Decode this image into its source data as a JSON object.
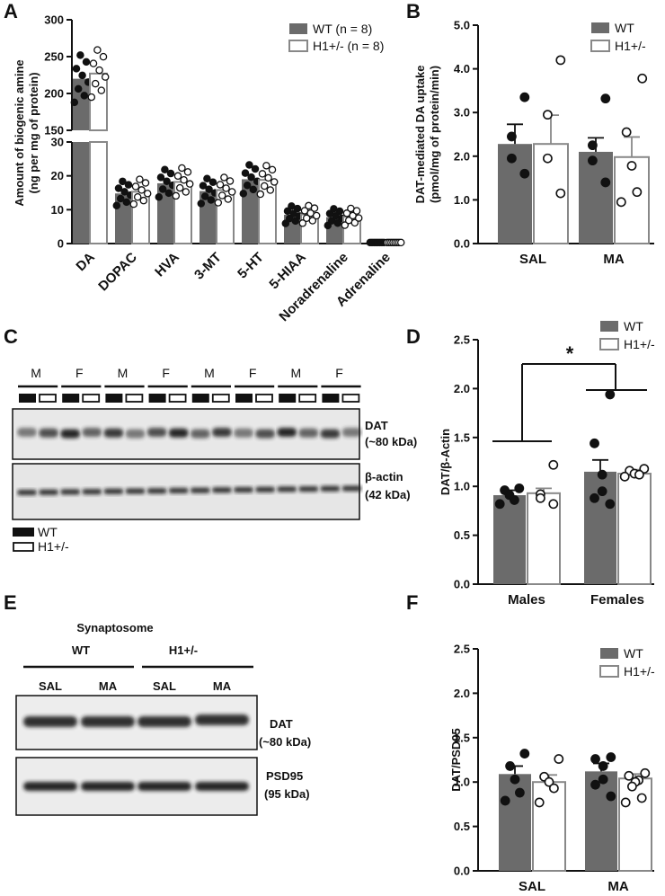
{
  "colors": {
    "wt": "#6b6b6b",
    "h1": "#ffffff",
    "outline": "#888888",
    "dot_wt": "#111111",
    "blot_band": "#1a1a1a",
    "blot_bg": "#e6e6e6"
  },
  "chart_data": [
    {
      "panel": "A",
      "type": "bar",
      "ylabel": "Amount of biogenic amine\n(ng per mg of protein)",
      "categories": [
        "DA",
        "DOPAC",
        "HVA",
        "3-MT",
        "5-HT",
        "5-HIAA",
        "Noradrenaline",
        "Adrenaline"
      ],
      "ylim_lower": [
        0,
        30
      ],
      "ylim_upper": [
        150,
        300
      ],
      "yticks_lower": [
        "0",
        "10",
        "20",
        "30"
      ],
      "yticks_upper": [
        "150",
        "200",
        "250",
        "300"
      ],
      "series": [
        {
          "name": "WT (n = 8)",
          "values": [
            220,
            14.8,
            17.8,
            15.5,
            19.0,
            8.5,
            7.8,
            0.3
          ]
        },
        {
          "name": "H1+/- (n = 8)",
          "values": [
            227,
            15.3,
            18.2,
            15.8,
            18.8,
            8.6,
            7.9,
            0.3
          ]
        }
      ],
      "legend": "top-right"
    },
    {
      "panel": "B",
      "type": "bar",
      "ylabel": "DAT-mediated DA uptake\n(pmol/mg of protein/min)",
      "categories": [
        "SAL",
        "MA"
      ],
      "ylim": [
        0,
        5
      ],
      "yticks": [
        "0.0",
        "1.0",
        "2.0",
        "3.0",
        "4.0",
        "5.0"
      ],
      "series": [
        {
          "name": "WT",
          "values": [
            2.28,
            2.1
          ],
          "sem": [
            0.45,
            0.32
          ],
          "points": [
            [
              3.35,
              2.45,
              1.95,
              1.6
            ],
            [
              3.32,
              2.25,
              1.9,
              1.4
            ]
          ]
        },
        {
          "name": "H1+/-",
          "values": [
            2.28,
            1.98
          ],
          "sem": [
            0.66,
            0.46
          ],
          "points": [
            [
              4.2,
              2.95,
              1.95,
              1.15
            ],
            [
              3.78,
              2.55,
              1.78,
              1.18,
              0.95
            ]
          ]
        }
      ],
      "legend": "top-right"
    },
    {
      "panel": "D",
      "type": "bar",
      "ylabel": "DAT/β-Actin",
      "categories": [
        "Males",
        "Females"
      ],
      "ylim": [
        0,
        2.5
      ],
      "yticks": [
        "0.0",
        "0.5",
        "1.0",
        "1.5",
        "2.0",
        "2.5"
      ],
      "series": [
        {
          "name": "WT",
          "values": [
            0.91,
            1.15
          ],
          "sem": [
            0.05,
            0.12
          ],
          "points": [
            [
              0.98,
              0.96,
              0.91,
              0.86,
              0.82
            ],
            [
              1.94,
              1.44,
              1.12,
              0.95,
              0.88,
              0.82
            ]
          ]
        },
        {
          "name": "H1+/-",
          "values": [
            0.93,
            1.13
          ],
          "sem": [
            0.05,
            0.04
          ],
          "points": [
            [
              1.22,
              0.92,
              0.88,
              0.82
            ],
            [
              1.18,
              1.16,
              1.13,
              1.12,
              1.1
            ]
          ]
        }
      ],
      "annotation": "*",
      "legend": "top-right"
    },
    {
      "panel": "F",
      "type": "bar",
      "ylabel": "DAT/PSD95",
      "categories": [
        "SAL",
        "MA"
      ],
      "ylim": [
        0,
        2.5
      ],
      "yticks": [
        "0.0",
        "0.5",
        "1.0",
        "1.5",
        "2.0",
        "2.5"
      ],
      "series": [
        {
          "name": "WT",
          "values": [
            1.09,
            1.12
          ],
          "sem": [
            0.09,
            0.09
          ],
          "points": [
            [
              1.32,
              1.18,
              1.03,
              0.88,
              0.79
            ],
            [
              1.28,
              1.26,
              1.18,
              1.03,
              0.97,
              0.84
            ]
          ]
        },
        {
          "name": "H1+/-",
          "values": [
            1.0,
            1.04
          ],
          "sem": [
            0.08,
            0.05
          ],
          "points": [
            [
              1.26,
              1.06,
              1.0,
              0.93,
              0.77
            ],
            [
              1.1,
              1.07,
              1.02,
              1.0,
              0.95,
              0.82,
              0.77
            ]
          ]
        }
      ],
      "legend": "top-right"
    }
  ],
  "panel_labels": {
    "a": "A",
    "b": "B",
    "c": "C",
    "d": "D",
    "e": "E",
    "f": "F"
  },
  "blot_c": {
    "sex_labels": [
      "M",
      "F",
      "M",
      "F",
      "M",
      "F",
      "M",
      "F"
    ],
    "genotype_pattern": [
      "WT",
      "H1+/-"
    ],
    "protein1": "DAT",
    "protein1_size": "(~80 kDa)",
    "protein2": "β-actin",
    "protein2_size": "(42 kDa)",
    "legend_wt": "WT",
    "legend_h1": "H1+/-"
  },
  "blot_e": {
    "title": "Synaptosome",
    "group_wt": "WT",
    "group_h1": "H1+/-",
    "lanes": [
      "SAL",
      "MA",
      "SAL",
      "MA"
    ],
    "protein1": "DAT",
    "protein1_size": "(~80 kDa)",
    "protein2": "PSD95",
    "protein2_size": "(95 kDa)"
  }
}
